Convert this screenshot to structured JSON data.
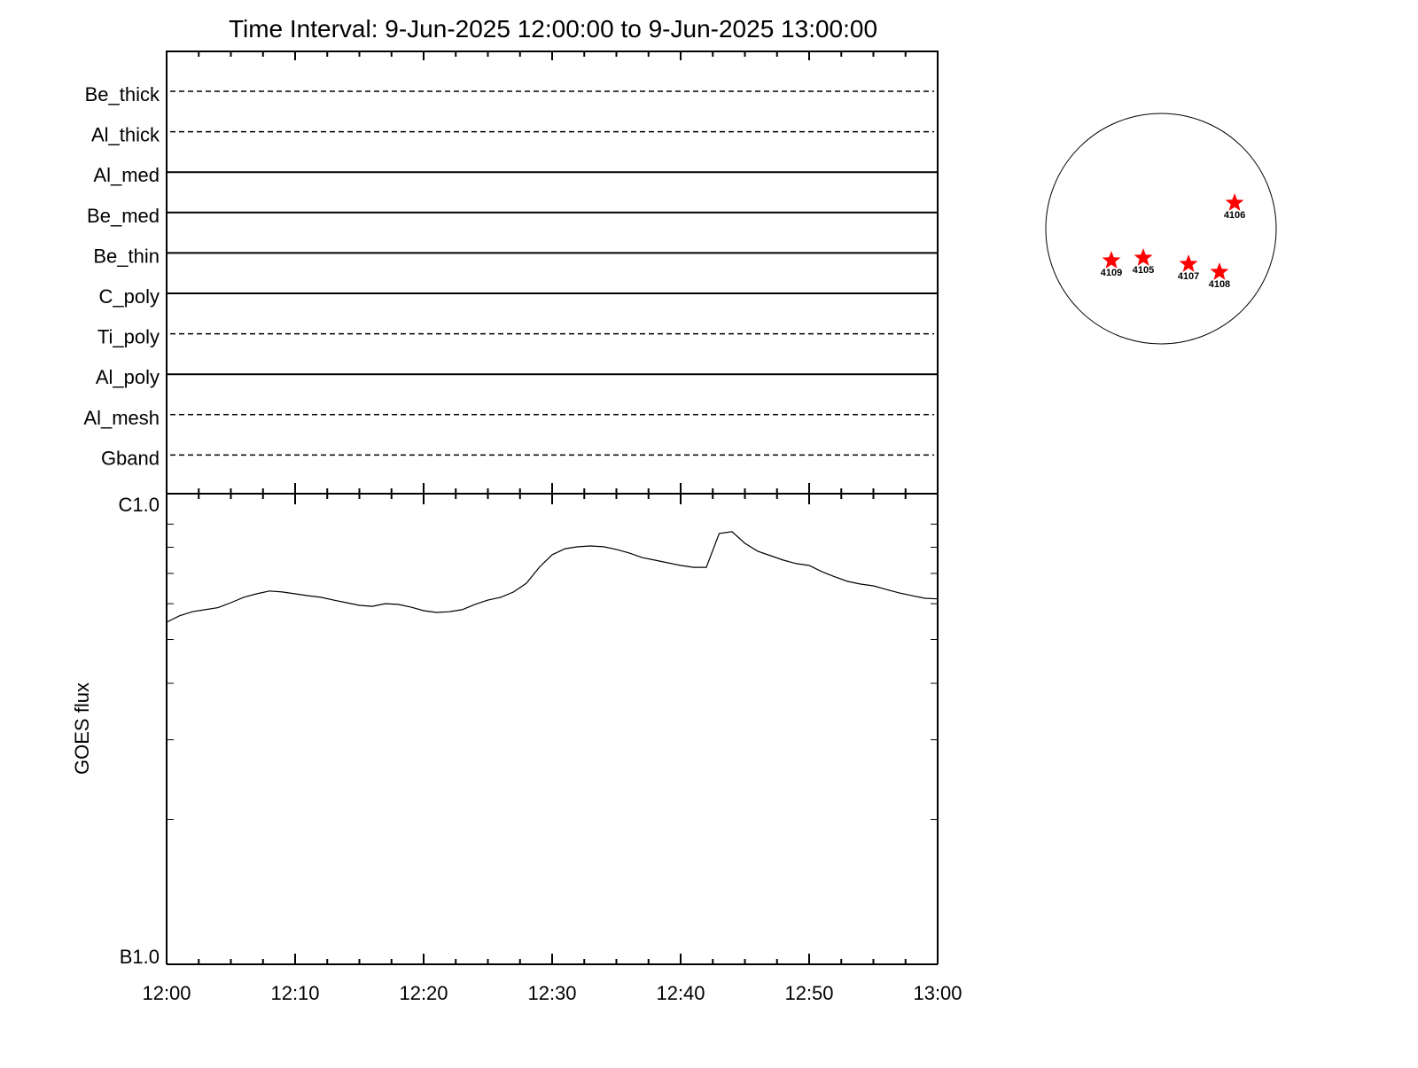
{
  "chart_data": [
    {
      "type": "table",
      "title": "Time Interval:  9-Jun-2025 12:00:00 to  9-Jun-2025 13:00:00",
      "rows": [
        {
          "label": "Be_thick",
          "style": "dashed"
        },
        {
          "label": "Al_thick",
          "style": "dashed"
        },
        {
          "label": "Al_med",
          "style": "solid"
        },
        {
          "label": "Be_med",
          "style": "solid"
        },
        {
          "label": "Be_thin",
          "style": "solid"
        },
        {
          "label": "C_poly",
          "style": "solid"
        },
        {
          "label": "Ti_poly",
          "style": "dashed"
        },
        {
          "label": "Al_poly",
          "style": "solid"
        },
        {
          "label": "Al_mesh",
          "style": "dashed"
        },
        {
          "label": "Gband",
          "style": "dashed"
        }
      ]
    },
    {
      "type": "line",
      "ylabel": "GOES flux",
      "yscale": "log",
      "ylim": [
        1e-06,
        1e-05
      ],
      "ytick_labels": [
        "B1.0",
        "C1.0"
      ],
      "xlim_minutes": [
        0,
        60
      ],
      "xtick_labels": [
        "12:00",
        "12:10",
        "12:20",
        "12:30",
        "12:40",
        "12:50",
        "13:00"
      ],
      "x_minutes": [
        0,
        1,
        2,
        3,
        4,
        5,
        6,
        7,
        8,
        9,
        10,
        11,
        12,
        13,
        14,
        15,
        16,
        17,
        18,
        19,
        20,
        21,
        22,
        23,
        24,
        25,
        26,
        27,
        28,
        29,
        30,
        31,
        32,
        33,
        34,
        35,
        36,
        37,
        38,
        39,
        40,
        41,
        42,
        43,
        44,
        45,
        46,
        47,
        48,
        49,
        50,
        51,
        52,
        53,
        54,
        55,
        56,
        57,
        58,
        59,
        60
      ],
      "y_watts_m2_e6": [
        5.46,
        5.64,
        5.76,
        5.82,
        5.88,
        6.03,
        6.2,
        6.31,
        6.4,
        6.37,
        6.31,
        6.25,
        6.2,
        6.11,
        6.03,
        5.95,
        5.92,
        6.0,
        5.98,
        5.9,
        5.79,
        5.74,
        5.76,
        5.82,
        5.98,
        6.11,
        6.2,
        6.37,
        6.66,
        7.22,
        7.7,
        7.94,
        8.02,
        8.05,
        8.02,
        7.91,
        7.77,
        7.59,
        7.49,
        7.39,
        7.29,
        7.22,
        7.22,
        8.58,
        8.66,
        8.16,
        7.84,
        7.66,
        7.49,
        7.36,
        7.29,
        7.06,
        6.88,
        6.72,
        6.63,
        6.57,
        6.45,
        6.34,
        6.25,
        6.17,
        6.15
      ]
    },
    {
      "type": "scatter",
      "disk_radius_arcsec": 950,
      "marker_color": "#ff0000",
      "regions": [
        {
          "label": "4106",
          "solar_x": 607,
          "solar_y": 212
        },
        {
          "label": "4109",
          "solar_x": -409,
          "solar_y": -263
        },
        {
          "label": "4105",
          "solar_x": -146,
          "solar_y": -241
        },
        {
          "label": "4107",
          "solar_x": 227,
          "solar_y": -292
        },
        {
          "label": "4108",
          "solar_x": 482,
          "solar_y": -358
        }
      ]
    }
  ]
}
